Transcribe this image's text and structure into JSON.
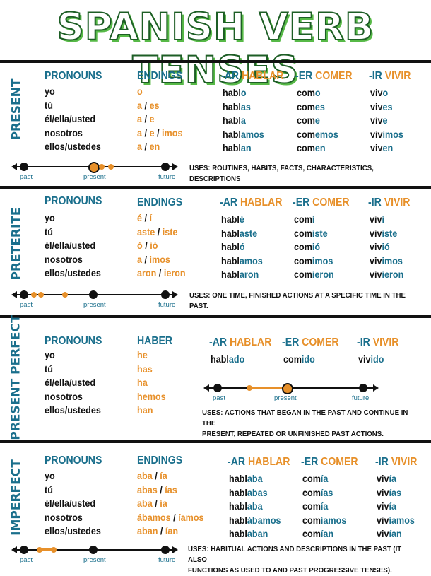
{
  "title": "SPANISH VERB TENSES",
  "colors": {
    "teal": "#1a6f8c",
    "orange": "#e7902a",
    "green": "#57b947",
    "dark_green": "#1d5e25"
  },
  "timeline_labels": {
    "past": "past",
    "present": "present",
    "future": "future"
  },
  "pronouns": [
    "yo",
    "tú",
    "él/ella/usted",
    "nosotros",
    "ellos/ustedes"
  ],
  "present": {
    "side_label": "PRESENT",
    "pronouns_header": "PRONOUNS",
    "endings_header": "ENDINGS",
    "endings": [
      [
        "o"
      ],
      [
        "a",
        "es"
      ],
      [
        "a",
        "e"
      ],
      [
        "a",
        "e",
        "imos"
      ],
      [
        "a",
        "en"
      ]
    ],
    "ar": {
      "prefix": "-AR",
      "verb": "HABLAR",
      "forms": [
        [
          "habl",
          "o"
        ],
        [
          "habl",
          "as"
        ],
        [
          "habl",
          "a"
        ],
        [
          "habl",
          "amos"
        ],
        [
          "habl",
          "an"
        ]
      ]
    },
    "er": {
      "prefix": "-ER",
      "verb": "COMER",
      "forms": [
        [
          "com",
          "o"
        ],
        [
          "com",
          "es"
        ],
        [
          "com",
          "e"
        ],
        [
          "com",
          "emos"
        ],
        [
          "com",
          "en"
        ]
      ]
    },
    "ir": {
      "prefix": "-IR",
      "verb": "VIVIR",
      "forms": [
        [
          "viv",
          "o"
        ],
        [
          "viv",
          "es"
        ],
        [
          "viv",
          "e"
        ],
        [
          "viv",
          "imos"
        ],
        [
          "viv",
          "en"
        ]
      ]
    },
    "uses": "USES: ROUTINES, HABITS, FACTS, CHARACTERISTICS, DESCRIPTIONS"
  },
  "preterite": {
    "side_label": "PRETERITE",
    "pronouns_header": "PRONOUNS",
    "endings_header": "ENDINGS",
    "endings": [
      [
        "é",
        "í"
      ],
      [
        "aste",
        "iste"
      ],
      [
        "ó",
        "ió"
      ],
      [
        "a",
        "imos"
      ],
      [
        "aron",
        "ieron"
      ]
    ],
    "ar": {
      "prefix": "-AR",
      "verb": "HABLAR",
      "forms": [
        [
          "habl",
          "é"
        ],
        [
          "habl",
          "aste"
        ],
        [
          "habl",
          "ó"
        ],
        [
          "habl",
          "amos"
        ],
        [
          "habl",
          "aron"
        ]
      ]
    },
    "er": {
      "prefix": "-ER",
      "verb": "COMER",
      "forms": [
        [
          "com",
          "í"
        ],
        [
          "com",
          "iste"
        ],
        [
          "com",
          "ió"
        ],
        [
          "com",
          "imos"
        ],
        [
          "com",
          "ieron"
        ]
      ]
    },
    "ir": {
      "prefix": "-IR",
      "verb": "VIVIR",
      "forms": [
        [
          "viv",
          "í"
        ],
        [
          "viv",
          "iste"
        ],
        [
          "viv",
          "ió"
        ],
        [
          "viv",
          "imos"
        ],
        [
          "viv",
          "ieron"
        ]
      ]
    },
    "uses": "USES: ONE TIME, FINISHED ACTIONS AT A SPECIFIC TIME IN THE PAST."
  },
  "present_perfect": {
    "side_label": "PRESENT PERFECT",
    "pronouns_header": "PRONOUNS",
    "haber_header": "HABER",
    "haber": [
      "he",
      "has",
      "ha",
      "hemos",
      "han"
    ],
    "ar": {
      "prefix": "-AR",
      "verb": "HABLAR",
      "form": [
        "habl",
        "ado"
      ]
    },
    "er": {
      "prefix": "-ER",
      "verb": "COMER",
      "form": [
        "com",
        "ido"
      ]
    },
    "ir": {
      "prefix": "-IR",
      "verb": "VIVIR",
      "form": [
        "viv",
        "ido"
      ]
    },
    "uses": [
      "USES: ACTIONS THAT BEGAN IN THE PAST AND CONTINUE IN THE",
      "PRESENT, REPEATED OR UNFINISHED PAST ACTIONS."
    ]
  },
  "imperfect": {
    "side_label": "IMPERFECT",
    "pronouns_header": "PRONOUNS",
    "endings_header": "ENDINGS",
    "endings": [
      [
        "aba",
        "ía"
      ],
      [
        "abas",
        "ías"
      ],
      [
        "aba",
        "ía"
      ],
      [
        "ábamos",
        "íamos"
      ],
      [
        "aban",
        "ían"
      ]
    ],
    "ar": {
      "prefix": "-AR",
      "verb": "HABLAR",
      "forms": [
        [
          "habl",
          "aba"
        ],
        [
          "habl",
          "abas"
        ],
        [
          "habl",
          "aba"
        ],
        [
          "habl",
          "ábamos"
        ],
        [
          "habl",
          "aban"
        ]
      ]
    },
    "er": {
      "prefix": "-ER",
      "verb": "COMER",
      "forms": [
        [
          "com",
          "ía"
        ],
        [
          "com",
          "ías"
        ],
        [
          "com",
          "ía"
        ],
        [
          "com",
          "íamos"
        ],
        [
          "com",
          "ían"
        ]
      ]
    },
    "ir": {
      "prefix": "-IR",
      "verb": "VIVIR",
      "forms": [
        [
          "viv",
          "ía"
        ],
        [
          "viv",
          "ías"
        ],
        [
          "viv",
          "ía"
        ],
        [
          "viv",
          "íamos"
        ],
        [
          "viv",
          "ían"
        ]
      ]
    },
    "uses": [
      "USES: HABITUAL ACTIONS AND DESCRIPTIONS IN THE PAST (IT ALSO",
      "FUNCTIONS AS USED TO AND PAST PROGRESSIVE TENSES)."
    ]
  }
}
